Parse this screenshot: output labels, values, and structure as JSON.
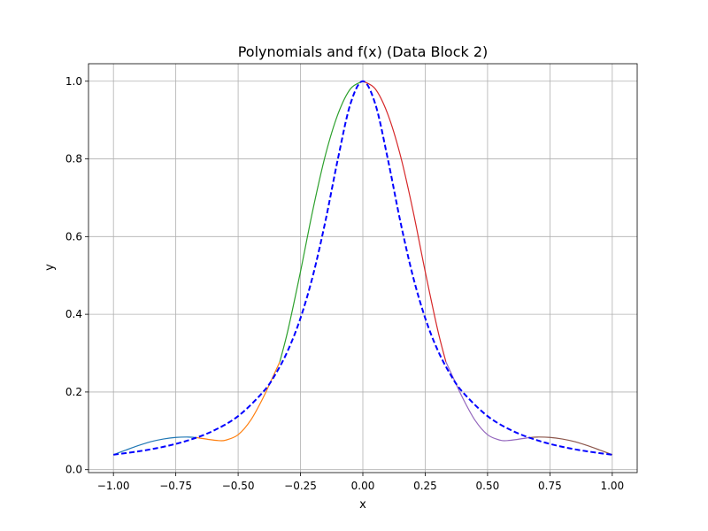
{
  "chart_data": {
    "type": "line",
    "title": "Polynomials and f(x) (Data Block 2)",
    "xlabel": "x",
    "ylabel": "y",
    "xlim": [
      -1.1,
      1.1
    ],
    "ylim": [
      -0.0075,
      1.045
    ],
    "grid": true,
    "legend": "none",
    "x_ticks": [
      -1.0,
      -0.75,
      -0.5,
      -0.25,
      0.0,
      0.25,
      0.5,
      0.75,
      1.0
    ],
    "x_tick_labels": [
      "−1.00",
      "−0.75",
      "−0.50",
      "−0.25",
      "0.00",
      "0.25",
      "0.50",
      "0.75",
      "1.00"
    ],
    "y_ticks": [
      0.0,
      0.2,
      0.4,
      0.6,
      0.8,
      1.0
    ],
    "y_tick_labels": [
      "0.0",
      "0.2",
      "0.4",
      "0.6",
      "0.8",
      "1.0"
    ],
    "series": [
      {
        "color": "#1f77b4",
        "style": "solid",
        "x": [
          -1.0,
          -0.95,
          -0.9,
          -0.85,
          -0.8,
          -0.75,
          -0.7,
          -0.667
        ],
        "y": [
          0.0385,
          0.0505,
          0.062,
          0.072,
          0.079,
          0.083,
          0.084,
          0.0826
        ]
      },
      {
        "color": "#ff7f0e",
        "style": "solid",
        "x": [
          -0.667,
          -0.62,
          -0.58,
          -0.55,
          -0.5,
          -0.45,
          -0.4,
          -0.36,
          -0.333
        ],
        "y": [
          0.0826,
          0.078,
          0.075,
          0.076,
          0.09,
          0.127,
          0.185,
          0.24,
          0.2775
        ]
      },
      {
        "color": "#2ca02c",
        "style": "solid",
        "x": [
          -0.333,
          -0.3,
          -0.25,
          -0.2,
          -0.15,
          -0.1,
          -0.05,
          0.0
        ],
        "y": [
          0.2775,
          0.36,
          0.51,
          0.67,
          0.81,
          0.915,
          0.98,
          1.0
        ]
      },
      {
        "color": "#d62728",
        "style": "solid",
        "x": [
          0.0,
          0.05,
          0.1,
          0.15,
          0.2,
          0.25,
          0.3,
          0.333
        ],
        "y": [
          1.0,
          0.98,
          0.915,
          0.81,
          0.67,
          0.51,
          0.36,
          0.2775
        ]
      },
      {
        "color": "#9467bd",
        "style": "solid",
        "x": [
          0.333,
          0.36,
          0.4,
          0.45,
          0.5,
          0.55,
          0.58,
          0.62,
          0.667
        ],
        "y": [
          0.2775,
          0.24,
          0.185,
          0.127,
          0.09,
          0.076,
          0.075,
          0.078,
          0.0826
        ]
      },
      {
        "color": "#8c564b",
        "style": "solid",
        "x": [
          0.667,
          0.7,
          0.75,
          0.8,
          0.85,
          0.9,
          0.95,
          1.0
        ],
        "y": [
          0.0826,
          0.084,
          0.083,
          0.079,
          0.072,
          0.062,
          0.0505,
          0.0385
        ]
      },
      {
        "color": "#0000ff",
        "style": "dashed",
        "x": [
          -1.0,
          -0.9,
          -0.8,
          -0.7,
          -0.6,
          -0.5,
          -0.4,
          -0.35,
          -0.3,
          -0.25,
          -0.2,
          -0.15,
          -0.1,
          -0.05,
          0.0,
          0.05,
          0.1,
          0.15,
          0.2,
          0.25,
          0.3,
          0.35,
          0.4,
          0.5,
          0.6,
          0.7,
          0.8,
          0.9,
          1.0
        ],
        "y": [
          0.0385,
          0.0471,
          0.0588,
          0.0755,
          0.1,
          0.1379,
          0.2,
          0.2462,
          0.3077,
          0.3902,
          0.5,
          0.64,
          0.8,
          0.9412,
          1.0,
          0.9412,
          0.8,
          0.64,
          0.5,
          0.3902,
          0.3077,
          0.2462,
          0.2,
          0.1379,
          0.1,
          0.0755,
          0.0588,
          0.0471,
          0.0385
        ]
      }
    ]
  }
}
